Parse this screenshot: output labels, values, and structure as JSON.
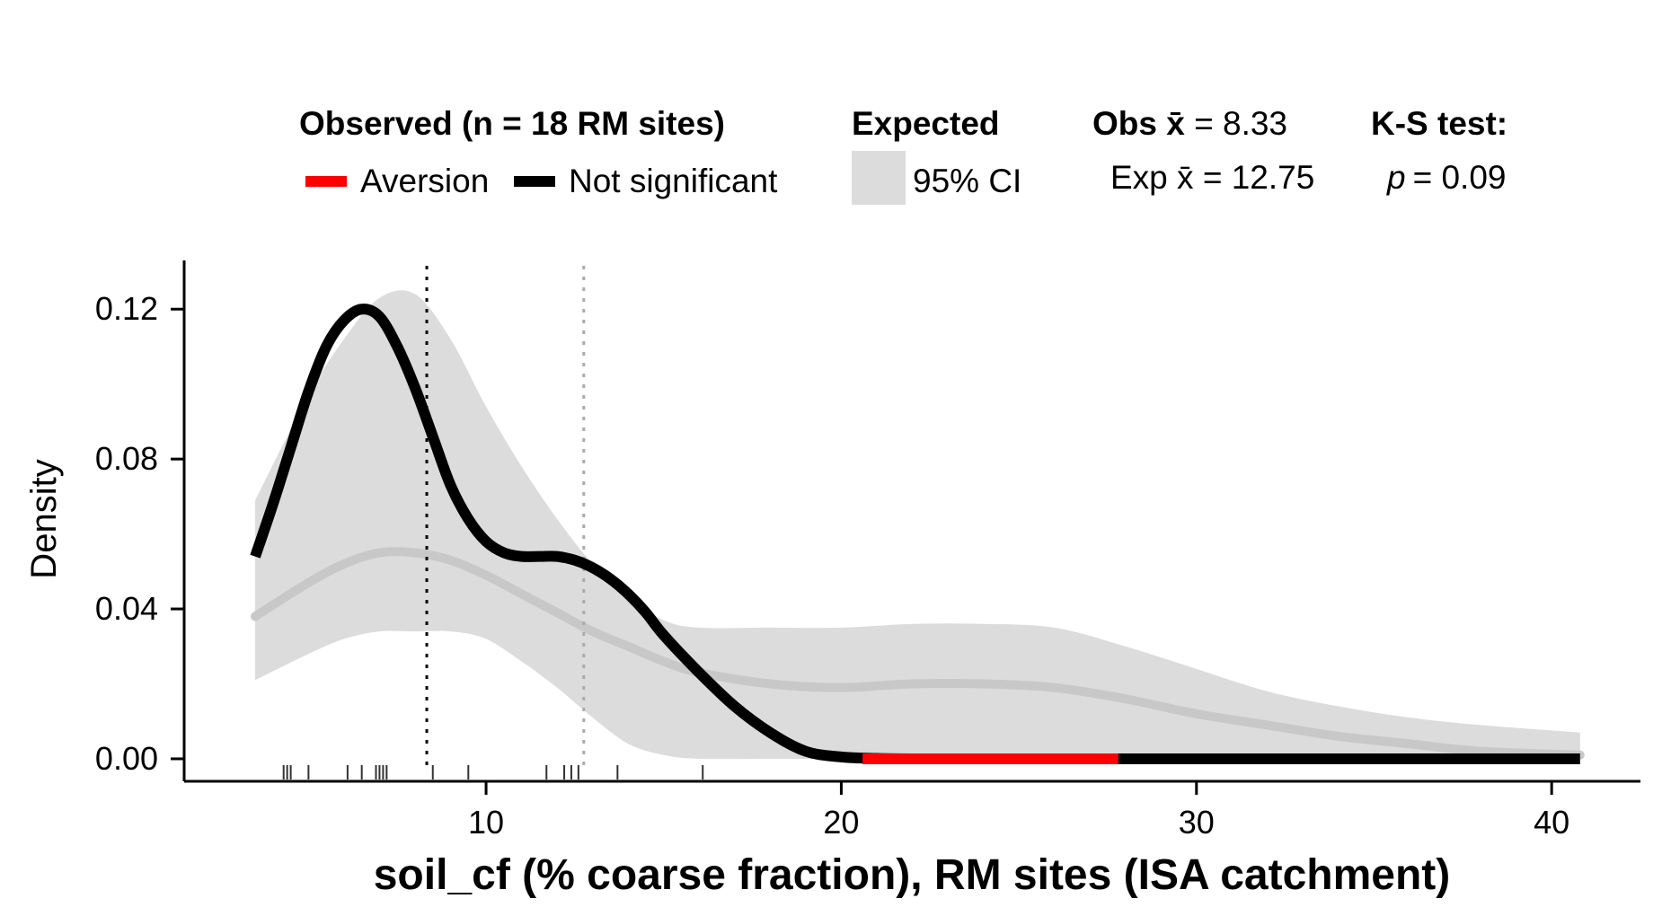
{
  "chart_data": {
    "type": "line",
    "xlabel": "soil_cf (% coarse fraction), RM sites (ISA catchment)",
    "ylabel": "Density",
    "xlim": [
      1.5,
      42.5
    ],
    "ylim": [
      -0.006,
      0.133
    ],
    "x_ticks": [
      10,
      20,
      30,
      40
    ],
    "y_ticks": [
      0.0,
      0.04,
      0.08,
      0.12
    ],
    "x_tick_labels": [
      "10",
      "20",
      "30",
      "40"
    ],
    "y_tick_labels": [
      "0.00",
      "0.04",
      "0.08",
      "0.12"
    ],
    "grid": false,
    "legend_placement": "top",
    "legend": {
      "observed_header": "Observed (n = 18 RM sites)",
      "aversion_label": "Aversion",
      "not_significant_label": "Not significant",
      "expected_header": "Expected",
      "ci_label": "95% CI",
      "obs_mean_label": "Obs x̄ = 8.33",
      "exp_mean_label": "Exp x̄ = 12.75",
      "ks_header": "K-S test:",
      "ks_p_symbol": "p",
      "ks_p_value": "= 0.09"
    },
    "observed_mean": 8.33,
    "expected_mean": 12.75,
    "colors": {
      "aversion": "#ff0000",
      "not_significant": "#000000",
      "ci_fill": "#dcdcdc",
      "expected_line": "#c8c8c8",
      "expected_mean_line": "#aaaaaa",
      "observed_mean_line": "#000000"
    },
    "series": [
      {
        "name": "Observed",
        "x": [
          3.5,
          4.0,
          4.5,
          5.0,
          5.5,
          6.0,
          6.5,
          7.0,
          7.5,
          8.0,
          8.5,
          9.0,
          9.5,
          10.0,
          10.5,
          11.0,
          11.5,
          12.0,
          12.5,
          13.0,
          13.5,
          14.0,
          14.5,
          15.0,
          16.0,
          17.0,
          18.0,
          19.0,
          20.0,
          21.0,
          22.0,
          25.0,
          28.0,
          30.0,
          35.0,
          40.8
        ],
        "y": [
          0.054,
          0.068,
          0.083,
          0.098,
          0.11,
          0.117,
          0.12,
          0.118,
          0.11,
          0.099,
          0.086,
          0.073,
          0.064,
          0.058,
          0.055,
          0.054,
          0.054,
          0.054,
          0.053,
          0.051,
          0.048,
          0.044,
          0.039,
          0.033,
          0.023,
          0.014,
          0.007,
          0.002,
          0.0005,
          0.0001,
          0.0,
          0.0,
          0.0,
          0.0,
          0.0,
          0.0
        ]
      },
      {
        "name": "Expected",
        "x": [
          3.5,
          5,
          6,
          7,
          8,
          9,
          10,
          11,
          12,
          13,
          14,
          15,
          16,
          18,
          20,
          22,
          24,
          26,
          28,
          30,
          32,
          34,
          36,
          38,
          40.8
        ],
        "y": [
          0.038,
          0.047,
          0.052,
          0.055,
          0.055,
          0.053,
          0.049,
          0.044,
          0.039,
          0.034,
          0.03,
          0.026,
          0.023,
          0.02,
          0.019,
          0.02,
          0.02,
          0.019,
          0.016,
          0.012,
          0.009,
          0.006,
          0.004,
          0.002,
          0.001
        ],
        "ci_lower": [
          0.021,
          0.028,
          0.032,
          0.034,
          0.034,
          0.034,
          0.032,
          0.026,
          0.019,
          0.011,
          0.004,
          0.001,
          0.0,
          0.0,
          0.0,
          0.0,
          0.0,
          0.0,
          0.0,
          0.0,
          0.0,
          0.0,
          0.0,
          0.0,
          0.0
        ],
        "ci_upper": [
          0.069,
          0.097,
          0.112,
          0.123,
          0.124,
          0.112,
          0.094,
          0.078,
          0.064,
          0.052,
          0.043,
          0.037,
          0.035,
          0.035,
          0.035,
          0.036,
          0.036,
          0.035,
          0.03,
          0.024,
          0.018,
          0.014,
          0.011,
          0.009,
          0.007
        ]
      }
    ],
    "aversion_segments": [
      [
        20.6,
        27.8
      ]
    ],
    "rug_x": [
      4.3,
      4.4,
      4.5,
      5.0,
      6.1,
      6.5,
      6.9,
      7.0,
      7.1,
      7.2,
      8.5,
      9.5,
      11.7,
      12.2,
      12.4,
      12.6,
      13.7,
      16.1
    ]
  }
}
